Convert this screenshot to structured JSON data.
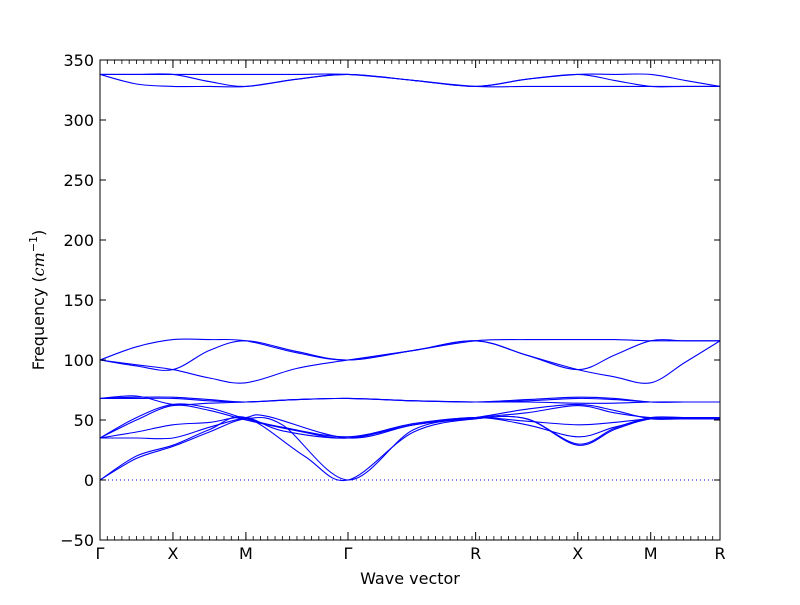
{
  "chart_data": {
    "type": "line",
    "xlabel": "Wave vector",
    "ylabel": {
      "text": "Frequency (",
      "unit": "cm",
      "exponent": "−1",
      "close": ")"
    },
    "ylim": [
      -50,
      350
    ],
    "yticks": [
      -50,
      0,
      50,
      100,
      150,
      200,
      250,
      300,
      350
    ],
    "xlim": [
      0,
      8.5
    ],
    "xticks": [
      {
        "label": "Γ",
        "x": 0
      },
      {
        "label": "X",
        "x": 1
      },
      {
        "label": "M",
        "x": 2
      },
      {
        "label": "Γ",
        "x": 3.4
      },
      {
        "label": "R",
        "x": 5.15
      },
      {
        "label": "X",
        "x": 6.55
      },
      {
        "label": "M",
        "x": 7.55
      },
      {
        "label": "R",
        "x": 8.5
      }
    ],
    "zero_line": {
      "y": 0,
      "style": "dotted"
    },
    "line_color": "#0000ff",
    "series": [
      {
        "x": [
          0,
          0.5,
          1,
          1.5,
          2,
          2.5,
          3.4,
          4.3,
          5.15,
          5.85,
          6.55,
          7.05,
          7.55,
          8.02,
          8.5
        ],
        "y": [
          0,
          18,
          28,
          40,
          51,
          46,
          0,
          42,
          51,
          51,
          29,
          42,
          51,
          51,
          51
        ]
      },
      {
        "x": [
          0,
          0.5,
          1,
          1.5,
          2,
          2.8,
          3.4,
          4.3,
          5.15,
          5.85,
          6.55,
          7.05,
          7.55,
          8.02,
          8.5
        ],
        "y": [
          0,
          20,
          29,
          42,
          52,
          20,
          0,
          40,
          51,
          51,
          30,
          43,
          52,
          52,
          52
        ]
      },
      {
        "x": [
          0,
          0.5,
          1,
          1.5,
          2,
          2.3,
          3.4,
          4.3,
          5.15,
          5.85,
          6.55,
          7.05,
          7.55,
          8.02,
          8.5
        ],
        "y": [
          35,
          35,
          35,
          44,
          52,
          53,
          35,
          46,
          52,
          46,
          36,
          44,
          51,
          51,
          51
        ]
      },
      {
        "x": [
          0,
          0.5,
          1,
          1.5,
          2,
          2.5,
          3.4,
          4.3,
          5.15,
          5.85,
          6.55,
          7.05,
          7.55,
          8.02,
          8.5
        ],
        "y": [
          35,
          40,
          46,
          48,
          52,
          41,
          35,
          46,
          52,
          56,
          62,
          56,
          52,
          52,
          52
        ]
      },
      {
        "x": [
          0,
          0.5,
          1,
          1.5,
          2,
          2.5,
          3.4,
          4.3,
          5.15,
          5.85,
          6.55,
          7.05,
          7.55,
          8.02,
          8.5
        ],
        "y": [
          35,
          52,
          63,
          60,
          51,
          44,
          36,
          47,
          52,
          49,
          46,
          48,
          51,
          51,
          51
        ]
      },
      {
        "x": [
          0,
          0.5,
          1,
          1.5,
          2,
          2.7,
          3.4,
          4.3,
          5.15,
          5.85,
          6.55,
          7.05,
          7.55,
          8.02,
          8.5
        ],
        "y": [
          35,
          50,
          62,
          58,
          50,
          41,
          35,
          46,
          52,
          59,
          63,
          58,
          51,
          51,
          51
        ]
      },
      {
        "x": [
          0,
          0.5,
          1,
          1.5,
          2,
          2.7,
          3.4,
          4.3,
          5.15,
          5.85,
          6.55,
          7.05,
          7.55,
          8.02,
          8.5
        ],
        "y": [
          68,
          70,
          63,
          64,
          65,
          67,
          68,
          66,
          65,
          65,
          64,
          64,
          65,
          65,
          65
        ]
      },
      {
        "x": [
          0,
          0.5,
          1,
          1.5,
          2,
          2.7,
          3.4,
          4.3,
          5.15,
          5.85,
          6.55,
          7.05,
          7.55,
          8.02,
          8.5
        ],
        "y": [
          68,
          69,
          69,
          67,
          65,
          67,
          68,
          66,
          65,
          67,
          69,
          68,
          65,
          65,
          65
        ]
      },
      {
        "x": [
          0,
          0.5,
          1,
          1.5,
          2,
          2.7,
          3.4,
          4.3,
          5.15,
          5.85,
          6.55,
          7.05,
          7.55,
          8.02,
          8.5
        ],
        "y": [
          68,
          68,
          68,
          66,
          65,
          67,
          68,
          66,
          65,
          66,
          68,
          67,
          65,
          65,
          65
        ]
      },
      {
        "x": [
          0,
          0.5,
          1,
          1.5,
          2,
          2.7,
          3.4,
          4.3,
          5.15,
          5.85,
          6.55,
          7.05,
          7.55,
          8.02,
          8.5
        ],
        "y": [
          100,
          96,
          92,
          85,
          81,
          93,
          100,
          108,
          116,
          104,
          92,
          86,
          81,
          98,
          116
        ]
      },
      {
        "x": [
          0,
          0.5,
          1,
          1.5,
          2,
          2.7,
          3.4,
          4.3,
          5.15,
          5.85,
          6.55,
          7.05,
          7.55,
          8.02,
          8.5
        ],
        "y": [
          100,
          95,
          92,
          108,
          116,
          107,
          100,
          108,
          116,
          104,
          92,
          104,
          116,
          116,
          116
        ]
      },
      {
        "x": [
          0,
          0.5,
          1,
          1.5,
          2,
          2.7,
          3.4,
          4.3,
          5.15,
          5.85,
          6.55,
          7.05,
          7.55,
          8.02,
          8.5
        ],
        "y": [
          100,
          111,
          117,
          117,
          116,
          106,
          100,
          108,
          116,
          117,
          117,
          117,
          116,
          116,
          116
        ]
      },
      {
        "x": [
          0,
          0.5,
          1,
          1.5,
          2,
          2.7,
          3.4,
          4.3,
          5.15,
          5.85,
          6.55,
          7.05,
          7.55,
          8.02,
          8.5
        ],
        "y": [
          338,
          330,
          328,
          328,
          328,
          334,
          338,
          333,
          328,
          328,
          328,
          328,
          328,
          328,
          328
        ]
      },
      {
        "x": [
          0,
          0.5,
          1,
          1.5,
          2,
          2.7,
          3.4,
          4.3,
          5.15,
          5.85,
          6.55,
          7.05,
          7.55,
          8.02,
          8.5
        ],
        "y": [
          338,
          338,
          338,
          332,
          328,
          334,
          338,
          333,
          328,
          334,
          338,
          333,
          328,
          328,
          328
        ]
      },
      {
        "x": [
          0,
          0.5,
          1,
          1.5,
          2,
          2.7,
          3.4,
          4.3,
          5.15,
          5.85,
          6.55,
          7.05,
          7.55,
          8.02,
          8.5
        ],
        "y": [
          338,
          338,
          338,
          338,
          338,
          338,
          338,
          333,
          328,
          334,
          338,
          338,
          338,
          333,
          328
        ]
      }
    ]
  }
}
